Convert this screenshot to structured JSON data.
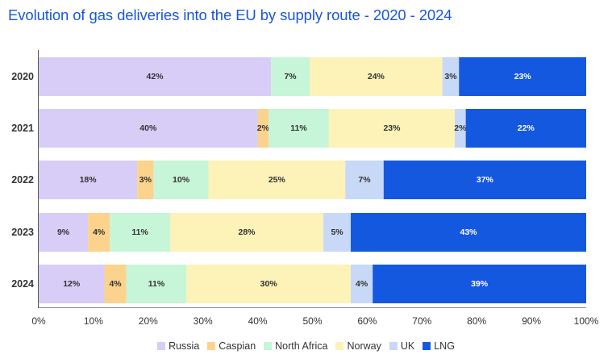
{
  "title": "Evolution of gas deliveries into the EU by supply route - 2020 - 2024",
  "chart_data": {
    "type": "bar",
    "orientation": "horizontal",
    "stacked": true,
    "title": "Evolution of gas deliveries into the EU by supply route - 2020 - 2024",
    "categories": [
      "2020",
      "2021",
      "2022",
      "2023",
      "2024"
    ],
    "series": [
      {
        "name": "Russia",
        "color": "#d7cdf7",
        "values": [
          42,
          40,
          18,
          9,
          12
        ],
        "labels": [
          "42%",
          "40%",
          "18%",
          "9%",
          "12%"
        ]
      },
      {
        "name": "Caspian",
        "color": "#fbd38d",
        "values": [
          0,
          2,
          3,
          4,
          4
        ],
        "labels": [
          "",
          "2%",
          "3%",
          "4%",
          "4%"
        ]
      },
      {
        "name": "North Africa",
        "color": "#c6f5d7",
        "values": [
          7,
          11,
          10,
          11,
          11
        ],
        "labels": [
          "7%",
          "11%",
          "10%",
          "11%",
          "11%"
        ]
      },
      {
        "name": "Norway",
        "color": "#fdf2b8",
        "values": [
          24,
          23,
          25,
          28,
          30
        ],
        "labels": [
          "24%",
          "23%",
          "25%",
          "28%",
          "30%"
        ]
      },
      {
        "name": "UK",
        "color": "#c7d9f7",
        "values": [
          3,
          2,
          7,
          5,
          4
        ],
        "labels": [
          "3%",
          "2%",
          "7%",
          "5%",
          "4%"
        ]
      },
      {
        "name": "LNG",
        "color": "#1558e0",
        "values": [
          23,
          22,
          37,
          43,
          39
        ],
        "labels": [
          "23%",
          "22%",
          "37%",
          "43%",
          "39%"
        ]
      }
    ],
    "xlim": [
      0,
      100
    ],
    "x_ticks": [
      "0%",
      "10%",
      "20%",
      "30%",
      "40%",
      "50%",
      "60%",
      "70%",
      "80%",
      "90%",
      "100%"
    ],
    "legend": "bottom-center",
    "grid": false
  }
}
